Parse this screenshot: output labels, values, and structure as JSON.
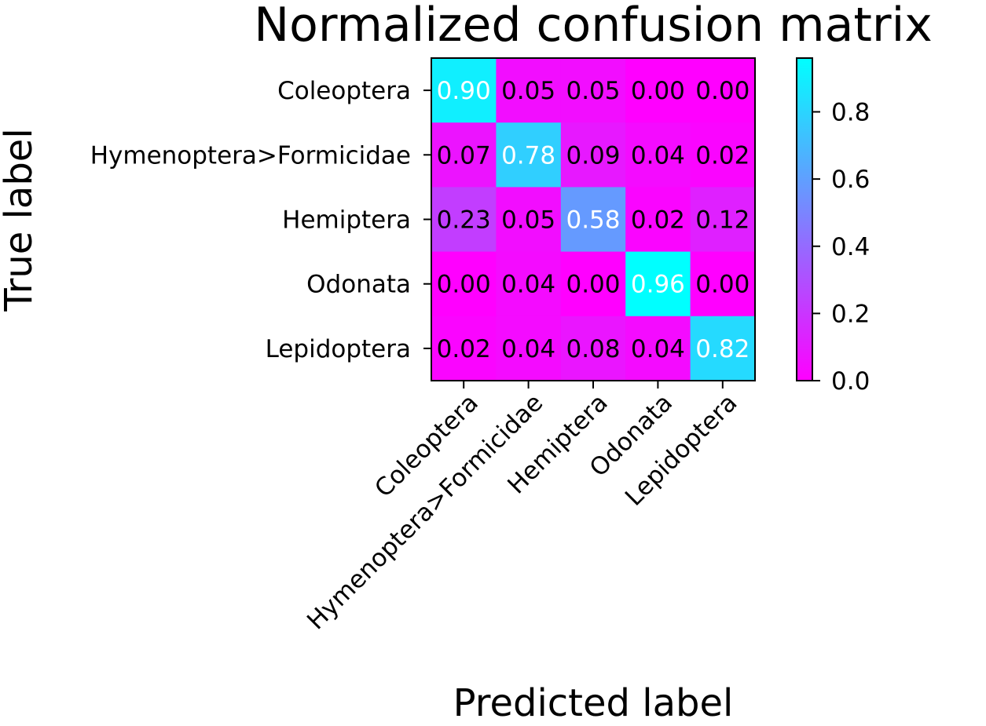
{
  "chart_data": {
    "type": "heatmap",
    "title": "Normalized confusion matrix",
    "xlabel": "Predicted label",
    "ylabel": "True label",
    "row_labels": [
      "Coleoptera",
      "Hymenoptera>Formicidae",
      "Hemiptera",
      "Odonata",
      "Lepidoptera"
    ],
    "col_labels": [
      "Coleoptera",
      "Hymenoptera>Formicidae",
      "Hemiptera",
      "Odonata",
      "Lepidoptera"
    ],
    "values": [
      [
        0.9,
        0.05,
        0.05,
        0.0,
        0.0
      ],
      [
        0.07,
        0.78,
        0.09,
        0.04,
        0.02
      ],
      [
        0.23,
        0.05,
        0.58,
        0.02,
        0.12
      ],
      [
        0.0,
        0.04,
        0.0,
        0.96,
        0.0
      ],
      [
        0.02,
        0.04,
        0.08,
        0.04,
        0.82
      ]
    ],
    "value_format": "0.00",
    "colormap": "cool-reversed",
    "color_low": "#ff00ff",
    "color_high": "#00ffff",
    "text_color_high": "#ffffff",
    "text_color_low": "#000000",
    "colorbar": {
      "range": [
        0,
        0.96
      ],
      "ticks": [
        0.0,
        0.2,
        0.4,
        0.6,
        0.8
      ],
      "tick_labels": [
        "0.0",
        "0.2",
        "0.4",
        "0.6",
        "0.8"
      ]
    }
  }
}
